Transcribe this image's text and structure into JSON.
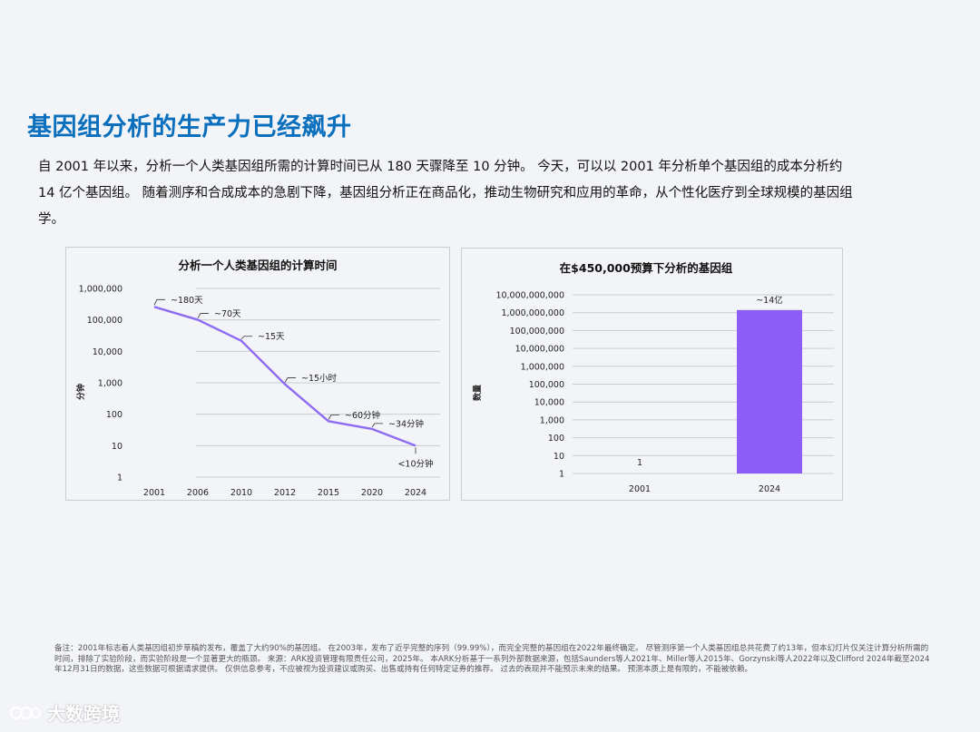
{
  "title": "基因组分析的生产力已经飙升",
  "intro": "自 2001 年以来，分析一个人类基因组所需的计算时间已从 180 天骤降至 10 分钟。 今天，可以以 2001 年分析单个基因组的成本分析约 14 亿个基因组。 随着测序和合成成本的急剧下降，基因组分析正在商品化，推动生物研究和应用的革命，从个性化医疗到全球规模的基因组学。",
  "footnote": "备注：2001年标志着人类基因组初步草稿的发布，覆盖了大约90%的基因组。 在2003年，发布了近乎完整的序列（99.99%），而完全完整的基因组在2022年最终确定。 尽管测序第一个人类基因组总共花费了约13年，但本幻灯片仅关注计算分析所需的时间，排除了实验阶段，而实验阶段是一个显著更大的瓶颈。 来源：ARK投资管理有限责任公司，2025年。 本ARK分析基于一系列外部数据来源，包括Saunders等人2021年、Miller等人2015年、Gorzynski等人2022年以及Clifford 2024年截至2024年12月31日的数据，这些数据可根据请求提供。 仅供信息参考，不应被视为投资建议或购买、出售或持有任何特定证券的推荐。 过去的表现并不能预示未来的结果。 预测本质上是有限的，不能被依赖。",
  "brand": {
    "name": "大数跨境",
    "logo_icon": "brand-logo-icon"
  },
  "colors": {
    "title": "#0a6fbd",
    "line": "#8e6cf2",
    "bar": "#8b5cf6",
    "grid": "#c8ccd2"
  },
  "chart_data": [
    {
      "type": "line",
      "title": "分析一个人类基因组的计算时间",
      "ylabel": "分钟",
      "yscale": "log",
      "ylim": [
        1,
        1000000
      ],
      "yticks": [
        "1,000,000",
        "100,000",
        "10,000",
        "1,000",
        "100",
        "10",
        "1"
      ],
      "x": [
        "2001",
        "2006",
        "2010",
        "2012",
        "2015",
        "2020",
        "2024"
      ],
      "values": [
        259200,
        100800,
        21600,
        900,
        60,
        34,
        10
      ],
      "labels": [
        "~180天",
        "~70天",
        "~15天",
        "~15小时",
        "~60分钟",
        "~34分钟",
        "<10分钟"
      ],
      "grid": true
    },
    {
      "type": "bar",
      "title": "在$450,000预算下分析的基因组",
      "ylabel": "数量",
      "yscale": "log",
      "ylim": [
        1,
        10000000000
      ],
      "yticks": [
        "10,000,000,000",
        "1,000,000,000",
        "100,000,000",
        "10,000,000",
        "1,000,000",
        "100,000",
        "10,000",
        "1,000",
        "100",
        "10",
        "1"
      ],
      "categories": [
        "2001",
        "2024"
      ],
      "values": [
        1,
        1400000000
      ],
      "labels": [
        "1",
        "~14亿"
      ],
      "grid": true
    }
  ]
}
